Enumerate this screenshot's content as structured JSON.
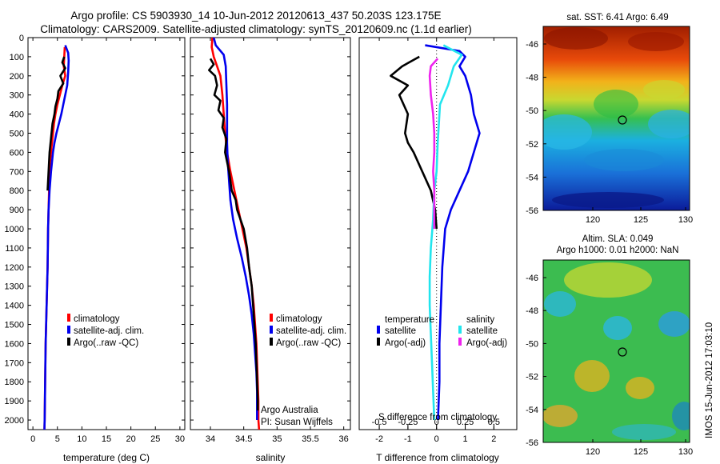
{
  "header": {
    "line1": "Argo profile: CS 5903930_14 10-Jun-2012 20120613_437 50.203S 123.175E",
    "line2": "Climatology: CARS2009. Satellite-adjusted climatology: synTS_20120609.nc (1.1d earlier)"
  },
  "colors": {
    "climatology": "#ff0000",
    "satellite": "#0000ee",
    "argo": "#000000",
    "satellite_s": "#22e5ee",
    "argo_s": "#ee22ee"
  },
  "legend_main": {
    "climatology": "climatology",
    "satellite": "satellite-adj. clim.",
    "argo": "Argo(..raw -QC)"
  },
  "legend_diff": {
    "temperature_title": "temperature",
    "salinity_title": "salinity",
    "satellite": "satellite",
    "argo": "Argo(-adj)"
  },
  "credits": {
    "line1": "Argo Australia",
    "line2": "PI: Susan Wijffels"
  },
  "maps": {
    "sst_title": "sat. SST: 6.41 Argo: 6.49",
    "sla_title1": "Altim. SLA: 0.049",
    "sla_title2": "Argo h1000: 0.01 h2000: NaN",
    "side_stamp": "IMOS 15-Jun-2012 17:03:10",
    "y_ticks": [
      "-46",
      "-48",
      "-50",
      "-52",
      "-54",
      "-56"
    ],
    "x_ticks": [
      "120",
      "125",
      "130"
    ]
  },
  "chart_data": [
    {
      "type": "line",
      "xlabel": "temperature (deg C)",
      "ylim": [
        2050,
        0
      ],
      "xlim": [
        -1,
        31
      ],
      "x_ticks": [
        0,
        5,
        10,
        15,
        20,
        25,
        30
      ],
      "y_ticks": [
        0,
        100,
        200,
        300,
        400,
        500,
        600,
        700,
        800,
        900,
        1000,
        1100,
        1200,
        1300,
        1400,
        1500,
        1600,
        1700,
        1800,
        1900,
        2000
      ],
      "series": [
        {
          "name": "climatology",
          "points": [
            [
              6.5,
              50
            ],
            [
              6.4,
              100
            ],
            [
              6.3,
              150
            ],
            [
              6.6,
              200
            ],
            [
              6.0,
              250
            ],
            [
              5.5,
              300
            ],
            [
              5.0,
              350
            ],
            [
              4.6,
              400
            ],
            [
              4.3,
              450
            ],
            [
              4.1,
              500
            ],
            [
              3.9,
              550
            ],
            [
              3.7,
              600
            ],
            [
              3.5,
              650
            ],
            [
              3.4,
              700
            ],
            [
              3.3,
              800
            ],
            [
              3.2,
              900
            ],
            [
              3.1,
              1000
            ],
            [
              3.0,
              1200
            ],
            [
              2.8,
              1400
            ],
            [
              2.6,
              1600
            ],
            [
              2.5,
              1800
            ],
            [
              2.4,
              2000
            ],
            [
              2.35,
              2050
            ]
          ]
        },
        {
          "name": "satellite-adj. clim.",
          "points": [
            [
              6.6,
              40
            ],
            [
              7.2,
              80
            ],
            [
              7.3,
              120
            ],
            [
              7.2,
              180
            ],
            [
              7.0,
              250
            ],
            [
              6.6,
              300
            ],
            [
              6.2,
              350
            ],
            [
              5.8,
              400
            ],
            [
              5.3,
              450
            ],
            [
              4.8,
              500
            ],
            [
              4.4,
              550
            ],
            [
              4.1,
              600
            ],
            [
              3.9,
              650
            ],
            [
              3.7,
              700
            ],
            [
              3.4,
              800
            ],
            [
              3.2,
              900
            ],
            [
              3.1,
              1000
            ],
            [
              3.0,
              1200
            ],
            [
              2.8,
              1400
            ],
            [
              2.6,
              1600
            ],
            [
              2.5,
              1800
            ],
            [
              2.4,
              2000
            ],
            [
              2.35,
              2050
            ]
          ]
        },
        {
          "name": "Argo(..raw -QC)",
          "points": [
            [
              6.4,
              100
            ],
            [
              6.0,
              130
            ],
            [
              6.6,
              160
            ],
            [
              5.6,
              200
            ],
            [
              6.2,
              240
            ],
            [
              5.2,
              280
            ],
            [
              5.0,
              320
            ],
            [
              4.6,
              360
            ],
            [
              4.4,
              400
            ],
            [
              4.0,
              450
            ],
            [
              3.8,
              500
            ],
            [
              3.6,
              550
            ],
            [
              3.4,
              600
            ],
            [
              3.3,
              650
            ],
            [
              3.2,
              700
            ],
            [
              3.1,
              750
            ],
            [
              3.0,
              800
            ]
          ]
        }
      ]
    },
    {
      "type": "line",
      "xlabel": "salinity",
      "ylim": [
        2050,
        0
      ],
      "xlim": [
        33.7,
        36.1
      ],
      "x_ticks": [
        34,
        34.5,
        35,
        35.5,
        36
      ],
      "tick_labels": [
        "34",
        "34.5",
        "35",
        "35.5",
        "36"
      ],
      "series": [
        {
          "name": "climatology",
          "points": [
            [
              34.03,
              0
            ],
            [
              34.02,
              50
            ],
            [
              34.05,
              100
            ],
            [
              34.1,
              150
            ],
            [
              34.15,
              200
            ],
            [
              34.18,
              300
            ],
            [
              34.2,
              400
            ],
            [
              34.22,
              500
            ],
            [
              34.25,
              600
            ],
            [
              34.3,
              700
            ],
            [
              34.36,
              800
            ],
            [
              34.42,
              900
            ],
            [
              34.48,
              1000
            ],
            [
              34.54,
              1100
            ],
            [
              34.58,
              1200
            ],
            [
              34.62,
              1300
            ],
            [
              34.65,
              1400
            ],
            [
              34.67,
              1500
            ],
            [
              34.69,
              1600
            ],
            [
              34.7,
              1700
            ],
            [
              34.71,
              1800
            ],
            [
              34.72,
              1900
            ],
            [
              34.72,
              2000
            ],
            [
              34.73,
              2050
            ]
          ]
        },
        {
          "name": "satellite-adj. clim.",
          "points": [
            [
              34.05,
              0
            ],
            [
              34.08,
              40
            ],
            [
              34.2,
              90
            ],
            [
              34.23,
              150
            ],
            [
              34.24,
              250
            ],
            [
              34.25,
              350
            ],
            [
              34.25,
              450
            ],
            [
              34.25,
              550
            ],
            [
              34.26,
              650
            ],
            [
              34.28,
              750
            ],
            [
              34.3,
              850
            ],
            [
              34.34,
              950
            ],
            [
              34.4,
              1050
            ],
            [
              34.47,
              1150
            ],
            [
              34.53,
              1250
            ],
            [
              34.58,
              1350
            ],
            [
              34.62,
              1450
            ],
            [
              34.65,
              1550
            ],
            [
              34.67,
              1650
            ],
            [
              34.69,
              1750
            ],
            [
              34.7,
              1850
            ],
            [
              34.7,
              1950
            ],
            [
              34.7,
              2000
            ]
          ]
        },
        {
          "name": "Argo(..raw -QC)",
          "points": [
            [
              34.0,
              110
            ],
            [
              34.05,
              140
            ],
            [
              33.98,
              170
            ],
            [
              34.07,
              200
            ],
            [
              34.1,
              250
            ],
            [
              34.06,
              300
            ],
            [
              34.15,
              330
            ],
            [
              34.12,
              380
            ],
            [
              34.2,
              420
            ],
            [
              34.18,
              470
            ],
            [
              34.24,
              530
            ],
            [
              34.22,
              600
            ],
            [
              34.28,
              700
            ],
            [
              34.32,
              800
            ],
            [
              34.38,
              850
            ],
            [
              34.4,
              900
            ],
            [
              34.45,
              950
            ],
            [
              34.5,
              1000
            ],
            [
              34.55,
              1100
            ],
            [
              34.58,
              1200
            ],
            [
              34.62,
              1300
            ],
            [
              34.64,
              1400
            ],
            [
              34.66,
              1500
            ],
            [
              34.68,
              1600
            ],
            [
              34.69,
              1700
            ],
            [
              34.7,
              1800
            ],
            [
              34.71,
              1900
            ],
            [
              34.71,
              1950
            ]
          ]
        }
      ]
    },
    {
      "type": "line",
      "xlabel": "T difference from climatology",
      "x2label": "S difference from climatology",
      "ylim": [
        2050,
        0
      ],
      "xlim": [
        -2.7,
        2.8
      ],
      "x_ticks": [
        -2,
        -1,
        0,
        1,
        2
      ],
      "x2_ticks": [
        -0.5,
        -0.25,
        0,
        0.25,
        0.5
      ],
      "x2_tick_labels": [
        "-0.5",
        "-0.25",
        "0",
        "0.25",
        "0.5"
      ],
      "x2_scale": 4,
      "series": [
        {
          "name": "temperature satellite",
          "points": [
            [
              -0.4,
              40
            ],
            [
              0.8,
              70
            ],
            [
              1.0,
              100
            ],
            [
              0.8,
              150
            ],
            [
              1.0,
              200
            ],
            [
              1.2,
              300
            ],
            [
              1.3,
              400
            ],
            [
              1.5,
              500
            ],
            [
              1.3,
              600
            ],
            [
              1.1,
              700
            ],
            [
              0.8,
              800
            ],
            [
              0.5,
              900
            ],
            [
              0.3,
              1000
            ],
            [
              0.2,
              1200
            ],
            [
              0.15,
              1400
            ],
            [
              0.1,
              1600
            ],
            [
              0.1,
              1800
            ],
            [
              0.05,
              2000
            ]
          ]
        },
        {
          "name": "temperature Argo(-adj)",
          "points": [
            [
              -0.6,
              100
            ],
            [
              -1.2,
              150
            ],
            [
              -1.6,
              200
            ],
            [
              -1.0,
              250
            ],
            [
              -1.3,
              300
            ],
            [
              -1.0,
              400
            ],
            [
              -1.1,
              500
            ],
            [
              -1.0,
              550
            ],
            [
              -0.8,
              600
            ],
            [
              -0.5,
              700
            ],
            [
              -0.2,
              800
            ],
            [
              -0.05,
              900
            ],
            [
              0.0,
              1000
            ]
          ]
        },
        {
          "name": "salinity satellite",
          "points": [
            [
              0.06,
              40
            ],
            [
              0.22,
              90
            ],
            [
              0.15,
              150
            ],
            [
              0.1,
              250
            ],
            [
              0.03,
              350
            ],
            [
              0.02,
              450
            ],
            [
              0.01,
              550
            ],
            [
              0.0,
              700
            ],
            [
              -0.02,
              800
            ],
            [
              -0.03,
              950
            ],
            [
              -0.05,
              1100
            ],
            [
              -0.06,
              1250
            ],
            [
              -0.06,
              1400
            ],
            [
              -0.05,
              1550
            ],
            [
              -0.04,
              1700
            ],
            [
              -0.03,
              1850
            ],
            [
              -0.02,
              2000
            ]
          ]
        },
        {
          "name": "salinity Argo(-adj)",
          "points": [
            [
              0.01,
              110
            ],
            [
              -0.05,
              150
            ],
            [
              -0.06,
              200
            ],
            [
              -0.05,
              300
            ],
            [
              -0.03,
              400
            ],
            [
              -0.02,
              500
            ],
            [
              -0.02,
              600
            ],
            [
              -0.03,
              700
            ],
            [
              -0.02,
              800
            ],
            [
              -0.02,
              900
            ],
            [
              -0.02,
              1000
            ]
          ]
        }
      ]
    }
  ]
}
